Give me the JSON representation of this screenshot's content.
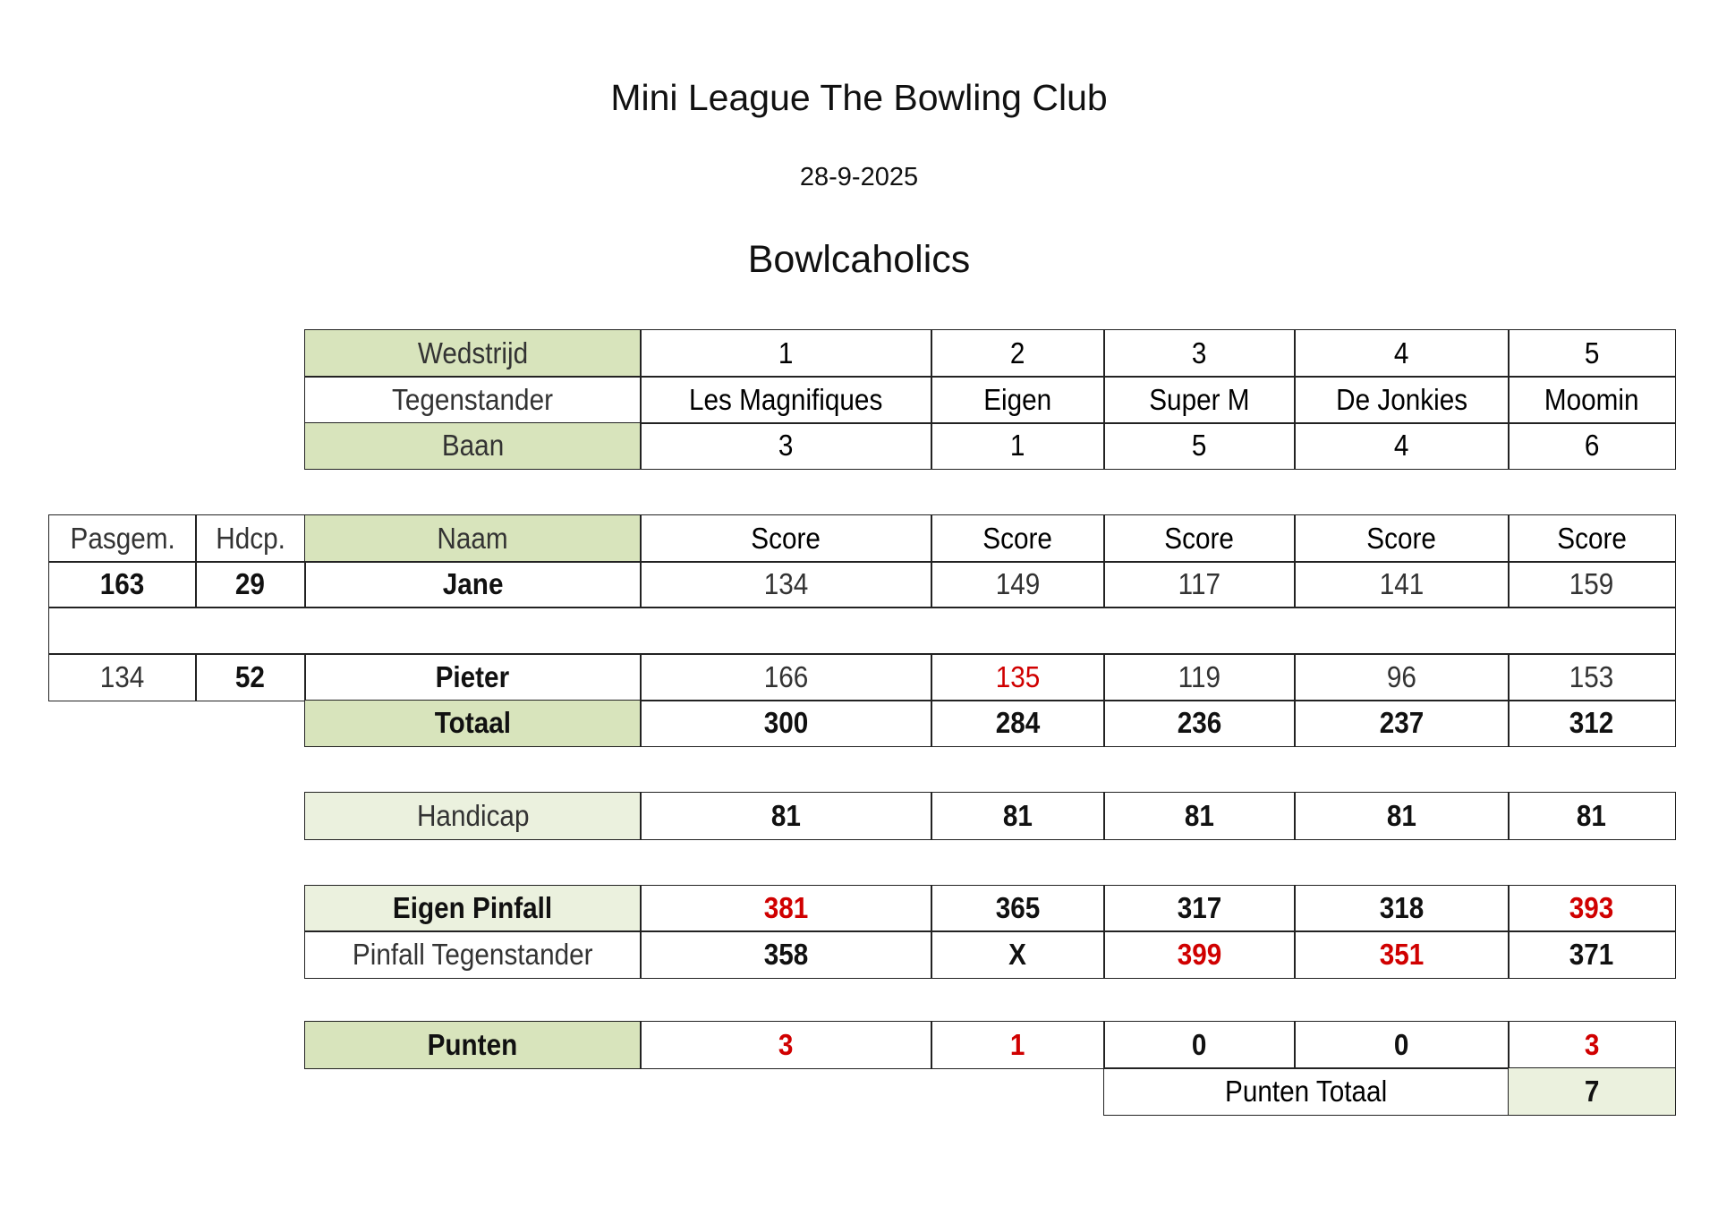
{
  "header": {
    "title": "Mini League The Bowling Club",
    "date": "28-9-2025",
    "team": "Bowlcaholics"
  },
  "colors": {
    "label_green": "#d8e4bc",
    "light_green": "#ebf1de",
    "highlight_red": "#d00000"
  },
  "matches": {
    "labels": {
      "wedstrijd": "Wedstrijd",
      "tegenstander": "Tegenstander",
      "baan": "Baan"
    },
    "numbers": [
      "1",
      "2",
      "3",
      "4",
      "5"
    ],
    "opponents": [
      "Les  Magnifiques",
      "Eigen",
      "Super M",
      "De Jonkies",
      "Moomin"
    ],
    "lanes": [
      "3",
      "1",
      "5",
      "4",
      "6"
    ]
  },
  "scores": {
    "headers": {
      "pasgem": "Pasgem.",
      "hdcp": "Hdcp.",
      "naam": "Naam",
      "score": [
        "Score",
        "Score",
        "Score",
        "Score",
        "Score"
      ]
    },
    "players": [
      {
        "pasgem": "163",
        "hdcp": "29",
        "name": "Jane",
        "scores": [
          "134",
          "149",
          "117",
          "141",
          "159"
        ],
        "red": [
          false,
          false,
          false,
          false,
          false
        ]
      },
      {
        "pasgem": "134",
        "hdcp": "52",
        "name": "Pieter",
        "scores": [
          "166",
          "135",
          "119",
          "96",
          "153"
        ],
        "red": [
          false,
          true,
          false,
          false,
          false
        ]
      }
    ],
    "totaal_label": "Totaal",
    "totaal": [
      "300",
      "284",
      "236",
      "237",
      "312"
    ]
  },
  "handicap": {
    "label": "Handicap",
    "values": [
      "81",
      "81",
      "81",
      "81",
      "81"
    ]
  },
  "pinfall": {
    "eigen_label": "Eigen Pinfall",
    "eigen": [
      "381",
      "365",
      "317",
      "318",
      "393"
    ],
    "eigen_red": [
      true,
      false,
      false,
      false,
      true
    ],
    "tegen_label": "Pinfall Tegenstander",
    "tegen": [
      "358",
      "X",
      "399",
      "351",
      "371"
    ],
    "tegen_red": [
      false,
      false,
      true,
      true,
      false
    ]
  },
  "punten": {
    "label": "Punten",
    "values": [
      "3",
      "1",
      "0",
      "0",
      "3"
    ],
    "red": [
      true,
      true,
      false,
      false,
      true
    ],
    "totaal_label": "Punten Totaal",
    "totaal": "7"
  }
}
